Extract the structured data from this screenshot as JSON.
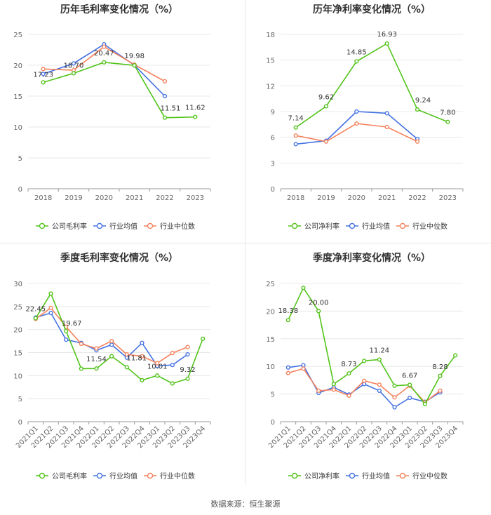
{
  "source": "数据来源：恒生聚源",
  "colors": {
    "company": "#52c41a",
    "avg": "#4472e3",
    "median": "#f5825c"
  },
  "chart_data": [
    {
      "type": "line",
      "title": "历年毛利率变化情况（%）",
      "categories": [
        "2018",
        "2019",
        "2020",
        "2021",
        "2022",
        "2023"
      ],
      "ylim": [
        0,
        25
      ],
      "yticks": [
        0,
        5,
        10,
        15,
        20,
        25
      ],
      "series": [
        {
          "key": "company",
          "name": "公司毛利率",
          "values": [
            17.23,
            18.7,
            20.47,
            19.98,
            11.51,
            11.62
          ]
        },
        {
          "key": "avg",
          "name": "行业均值",
          "values": [
            18.6,
            20.3,
            23.4,
            20.0,
            15.0,
            null
          ]
        },
        {
          "key": "median",
          "name": "行业中位数",
          "values": [
            19.4,
            19.2,
            23.0,
            20.1,
            17.4,
            null
          ]
        }
      ],
      "annotations": [
        {
          "index": 0,
          "label": "17.23"
        },
        {
          "index": 1,
          "label": "18.70"
        },
        {
          "index": 2,
          "label": "20.47"
        },
        {
          "index": 3,
          "label": "19.98"
        },
        {
          "index": 4,
          "label": "11.51"
        },
        {
          "index": 5,
          "label": "11.62"
        }
      ],
      "legend": [
        "公司毛利率",
        "行业均值",
        "行业中位数"
      ]
    },
    {
      "type": "line",
      "title": "历年净利率变化情况（%）",
      "categories": [
        "2018",
        "2019",
        "2020",
        "2021",
        "2022",
        "2023"
      ],
      "ylim": [
        0,
        18
      ],
      "yticks": [
        0,
        3,
        6,
        9,
        12,
        15,
        18
      ],
      "series": [
        {
          "key": "company",
          "name": "公司净利率",
          "values": [
            7.14,
            9.62,
            14.85,
            16.93,
            9.24,
            7.8
          ]
        },
        {
          "key": "avg",
          "name": "行业均值",
          "values": [
            5.2,
            5.6,
            9.0,
            8.8,
            5.8,
            null
          ]
        },
        {
          "key": "median",
          "name": "行业中位数",
          "values": [
            6.2,
            5.5,
            7.6,
            7.2,
            5.5,
            null
          ]
        }
      ],
      "annotations": [
        {
          "index": 0,
          "label": "7.14"
        },
        {
          "index": 1,
          "label": "9.62"
        },
        {
          "index": 2,
          "label": "14.85"
        },
        {
          "index": 3,
          "label": "16.93"
        },
        {
          "index": 4,
          "label": "9.24"
        },
        {
          "index": 5,
          "label": "7.80"
        }
      ],
      "legend": [
        "公司净利率",
        "行业均值",
        "行业中位数"
      ]
    },
    {
      "type": "line",
      "title": "季度毛利率变化情况（%）",
      "categories": [
        "2021Q1",
        "2021Q2",
        "2021Q3",
        "2021Q4",
        "2022Q1",
        "2022Q2",
        "2022Q3",
        "2022Q4",
        "2023Q1",
        "2023Q2",
        "2023Q3",
        "2023Q4"
      ],
      "ylim": [
        0,
        30
      ],
      "yticks": [
        0,
        5,
        10,
        15,
        20,
        25,
        30
      ],
      "series": [
        {
          "key": "company",
          "name": "公司毛利率",
          "values": [
            22.45,
            27.8,
            19.67,
            11.5,
            11.54,
            14.2,
            11.81,
            9.0,
            10.01,
            8.3,
            9.32,
            18.0
          ]
        },
        {
          "key": "avg",
          "name": "行业均值",
          "values": [
            22.6,
            23.6,
            17.8,
            17.1,
            15.5,
            16.7,
            13.9,
            17.1,
            12.1,
            12.3,
            14.6,
            null
          ]
        },
        {
          "key": "median",
          "name": "行业中位数",
          "values": [
            22.3,
            24.7,
            20.6,
            16.9,
            15.9,
            17.5,
            14.6,
            14.2,
            12.7,
            14.9,
            16.2,
            null
          ]
        }
      ],
      "annotations": [
        {
          "index": 0,
          "label": "22.45"
        },
        {
          "index": 2,
          "label": "19.67"
        },
        {
          "index": 4,
          "label": "11.54"
        },
        {
          "index": 6,
          "label": "11.81"
        },
        {
          "index": 8,
          "label": "10.01"
        },
        {
          "index": 10,
          "label": "9.32"
        }
      ],
      "legend": [
        "公司毛利率",
        "行业均值",
        "行业中位数"
      ]
    },
    {
      "type": "line",
      "title": "季度净利率变化情况（%）",
      "categories": [
        "2021Q1",
        "2021Q2",
        "2021Q3",
        "2021Q4",
        "2022Q1",
        "2022Q2",
        "2022Q3",
        "2022Q4",
        "2023Q1",
        "2023Q2",
        "2023Q3",
        "2023Q4"
      ],
      "ylim": [
        0,
        25
      ],
      "yticks": [
        0,
        5,
        10,
        15,
        20,
        25
      ],
      "series": [
        {
          "key": "company",
          "name": "公司净利率",
          "values": [
            18.38,
            24.2,
            20.0,
            6.8,
            8.73,
            11.0,
            11.24,
            6.5,
            6.67,
            3.2,
            8.28,
            12.0
          ]
        },
        {
          "key": "avg",
          "name": "行业均值",
          "values": [
            9.8,
            10.2,
            5.2,
            6.2,
            4.9,
            6.8,
            5.6,
            2.6,
            4.3,
            3.6,
            5.3,
            null
          ]
        },
        {
          "key": "median",
          "name": "行业中位数",
          "values": [
            8.8,
            9.6,
            5.6,
            5.8,
            4.7,
            7.4,
            6.7,
            4.4,
            6.5,
            3.5,
            5.6,
            null
          ]
        }
      ],
      "annotations": [
        {
          "index": 0,
          "label": "18.38"
        },
        {
          "index": 2,
          "label": "20.00"
        },
        {
          "index": 4,
          "label": "8.73"
        },
        {
          "index": 6,
          "label": "11.24"
        },
        {
          "index": 8,
          "label": "6.67"
        },
        {
          "index": 10,
          "label": "8.28"
        }
      ],
      "legend": [
        "公司净利率",
        "行业均值",
        "行业中位数"
      ]
    }
  ]
}
